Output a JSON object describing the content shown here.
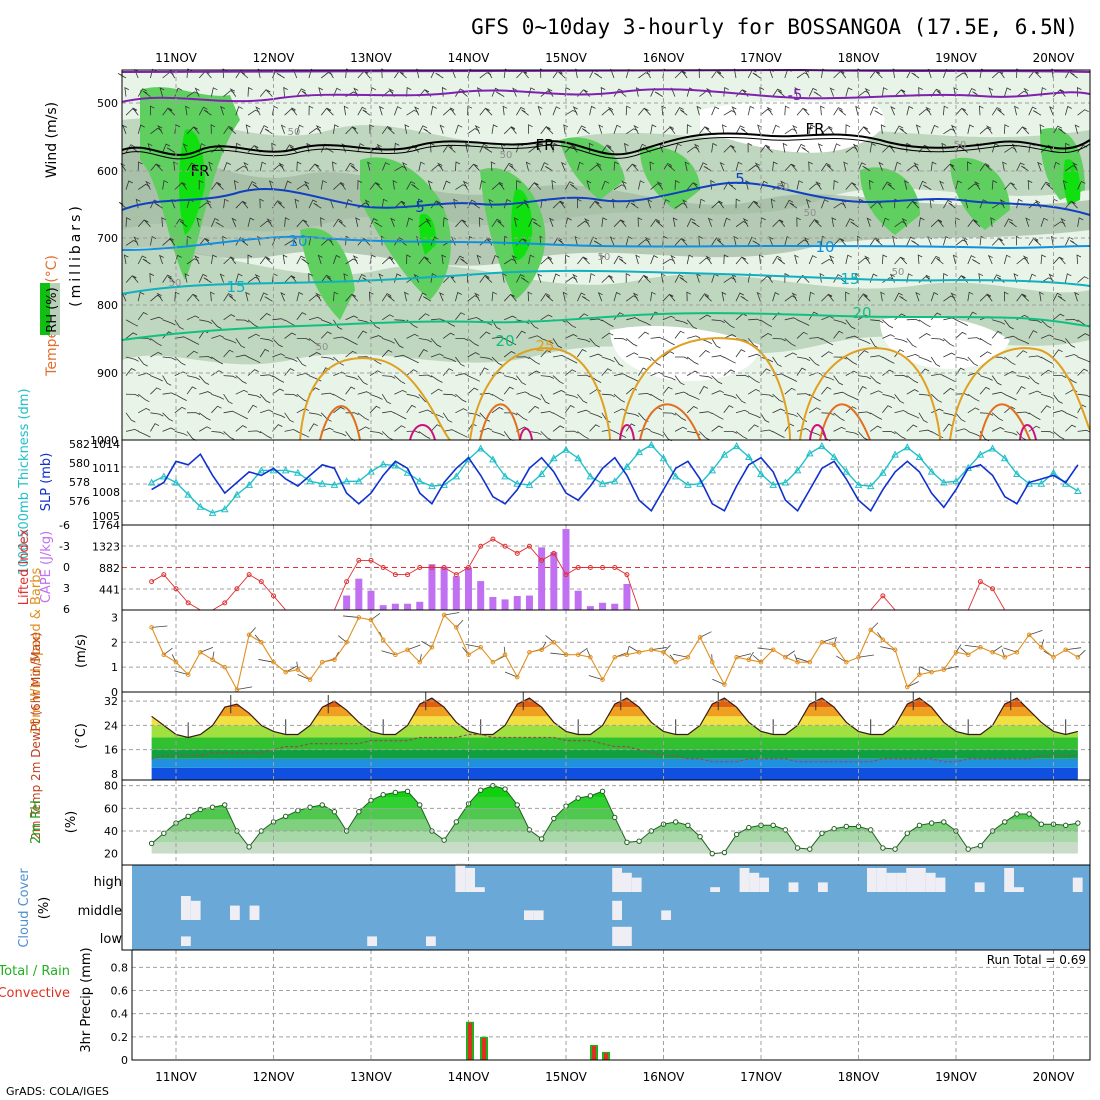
{
  "title": "GFS 0~10day 3-hourly for BOSSANGOA (17.5E, 6.5N)",
  "footer": "GrADS: COLA/IGES",
  "dates": [
    "11NOV",
    "12NOV",
    "13NOV",
    "14NOV",
    "15NOV",
    "16NOV",
    "17NOV",
    "18NOV",
    "19NOV",
    "20NOV"
  ],
  "colors": {
    "frame": "#000000",
    "grid": "#a0a0a0",
    "rh_light": "#e8f4e8",
    "rh_mid": "#bfd6bf",
    "rh_dark": "#9fb89f",
    "rh_green": "#5fcf5f",
    "rh_bright": "#10e010",
    "slp": "#1030d0",
    "thickness": "#20c0c8",
    "lifted": "#e03030",
    "cape": "#c070f0",
    "wind": "#e09020",
    "rh2m": "#20c020",
    "cloud": "#6aa8d8",
    "cloud_clear": "#eeeef4",
    "rain": "#e03020",
    "total_precip": "#20b020"
  },
  "panels": {
    "upper": {
      "ylabel_rh": "RH (%)",
      "ylabel_temp": "Temperature (°C)",
      "ylabel_wind": "Wind (m/s)",
      "ylabel_units": "(millibars)",
      "levels": [
        "500",
        "600",
        "700",
        "800",
        "900",
        "1000"
      ],
      "contour_labels": [
        {
          "text": "FR",
          "color": "#000000"
        },
        {
          "text": "FR",
          "color": "#000000"
        },
        {
          "text": "FR",
          "color": "#000000"
        },
        {
          "text": "-5",
          "color": "#8020b0"
        },
        {
          "text": "5",
          "color": "#1040c0"
        },
        {
          "text": "5",
          "color": "#1040c0"
        },
        {
          "text": "10",
          "color": "#1090e0"
        },
        {
          "text": "10",
          "color": "#1090e0"
        },
        {
          "text": "15",
          "color": "#10b0c0"
        },
        {
          "text": "15",
          "color": "#10b0c0"
        },
        {
          "text": "20",
          "color": "#10c080"
        },
        {
          "text": "20",
          "color": "#10c080"
        },
        {
          "text": "25",
          "color": "#e0a020"
        },
        {
          "text": "50",
          "color": "#909090"
        },
        {
          "text": "50",
          "color": "#909090"
        },
        {
          "text": "50",
          "color": "#909090"
        },
        {
          "text": "50",
          "color": "#909090"
        },
        {
          "text": "50",
          "color": "#909090"
        },
        {
          "text": "50",
          "color": "#909090"
        },
        {
          "text": "50",
          "color": "#909090"
        },
        {
          "text": "50",
          "color": "#909090"
        },
        {
          "text": "50",
          "color": "#909090"
        }
      ]
    },
    "slp": {
      "label_left": "1000-500mb Thickness (dm)",
      "label_right": "SLP (mb)",
      "left_ticks": [
        "582",
        "580",
        "578",
        "576"
      ],
      "right_ticks": [
        "1014",
        "1011",
        "1008",
        "1005"
      ]
    },
    "cape": {
      "label_left": "Lifted Index",
      "label_right": "CAPE (J/kg)",
      "left_ticks": [
        "-6",
        "-3",
        "0",
        "3",
        "6"
      ],
      "right_ticks": [
        "1764",
        "1323",
        "882",
        "441"
      ]
    },
    "wind": {
      "label": "10m Wind Speed & Barbs",
      "units": "(m/s)",
      "ticks": [
        "3",
        "2",
        "1",
        "0"
      ]
    },
    "temp": {
      "label": "2m Temp 2m DewPt (6hr Min/Max)",
      "units": "(°C)",
      "ticks": [
        "32",
        "24",
        "16",
        "8"
      ]
    },
    "rh": {
      "label": "2m RH",
      "units": "(%)",
      "ticks": [
        "80",
        "60",
        "40",
        "20"
      ]
    },
    "cloud": {
      "label": "Cloud Cover",
      "units": "(%)",
      "rows": [
        "high",
        "middle",
        "low"
      ]
    },
    "precip": {
      "label_total": "Total / Rain",
      "label_conv": "Convective",
      "label_axis": "3hr Precip (mm)",
      "ticks": [
        "0.8",
        "0.6",
        "0.4",
        "0.2",
        "0"
      ],
      "run_total": "Run Total = 0.69"
    }
  },
  "chart_data": [
    {
      "type": "line",
      "name": "SLP",
      "ylabel": "SLP (mb)",
      "ylim": [
        1003,
        1015
      ],
      "x": [
        "10NOV18",
        "10NOV21",
        "11NOV00",
        "11NOV03",
        "11NOV06",
        "11NOV09",
        "11NOV12",
        "11NOV15",
        "11NOV18",
        "11NOV21",
        "12NOV00",
        "12NOV03",
        "12NOV06",
        "12NOV09",
        "12NOV12",
        "12NOV15",
        "12NOV18",
        "12NOV21",
        "13NOV00",
        "13NOV03",
        "13NOV06",
        "13NOV09",
        "13NOV12",
        "13NOV15",
        "13NOV18",
        "13NOV21",
        "14NOV00",
        "14NOV03",
        "14NOV06",
        "14NOV09",
        "14NOV12",
        "14NOV15",
        "14NOV18",
        "14NOV21",
        "15NOV00",
        "15NOV03",
        "15NOV06",
        "15NOV09",
        "15NOV12",
        "15NOV15",
        "15NOV18",
        "15NOV21",
        "16NOV00",
        "16NOV03",
        "16NOV06",
        "16NOV09",
        "16NOV12",
        "16NOV15",
        "16NOV18",
        "16NOV21",
        "17NOV00",
        "17NOV03",
        "17NOV06",
        "17NOV09",
        "17NOV12",
        "17NOV15",
        "17NOV18",
        "17NOV21",
        "18NOV00",
        "18NOV03",
        "18NOV06",
        "18NOV09",
        "18NOV12",
        "18NOV15",
        "18NOV18",
        "18NOV21",
        "19NOV00",
        "19NOV03",
        "19NOV06",
        "19NOV09",
        "19NOV12",
        "19NOV15",
        "19NOV18",
        "19NOV21",
        "20NOV00",
        "20NOV03",
        "20NOV06"
      ],
      "values": [
        1008,
        1009,
        1012,
        1011.5,
        1013,
        1010,
        1007.5,
        1009,
        1010.5,
        1010,
        1011,
        1009.5,
        1008.5,
        1010,
        1011.5,
        1011,
        1007.5,
        1006,
        1007.5,
        1010,
        1012,
        1011,
        1007.5,
        1006,
        1009,
        1011,
        1012.5,
        1010,
        1007,
        1006,
        1008,
        1011,
        1012.5,
        1010.5,
        1007.5,
        1006.5,
        1008.5,
        1011,
        1012.5,
        1010,
        1006.5,
        1005,
        1008,
        1011,
        1012,
        1009.5,
        1006,
        1005,
        1008.5,
        1011.5,
        1012.5,
        1010.5,
        1006.5,
        1005,
        1008,
        1011,
        1012,
        1009.5,
        1006.5,
        1005,
        1008,
        1010.5,
        1012,
        1010.5,
        1007.5,
        1005.5,
        1008,
        1011,
        1011.5,
        1010,
        1007,
        1006,
        1009,
        1009.5,
        1010,
        1009,
        1011.5
      ]
    },
    {
      "type": "line",
      "name": "1000-500mb Thickness",
      "ylabel": "Thickness (dm)",
      "ylim": [
        575,
        582
      ],
      "values": [
        578.5,
        579,
        578.5,
        577.5,
        576.5,
        576,
        576.3,
        577.5,
        578.3,
        579.5,
        579.5,
        579.5,
        579.3,
        578.6,
        578.4,
        578.3,
        578.6,
        578.6,
        579.4,
        580,
        579.9,
        579.3,
        578.6,
        578.2,
        578.3,
        579,
        580.4,
        581.3,
        580.4,
        579,
        578.4,
        578.3,
        579.2,
        580.5,
        581.2,
        580.5,
        579,
        578.4,
        578.6,
        579.8,
        581,
        581.6,
        580.5,
        579,
        578.3,
        578.4,
        579.5,
        580.8,
        581.5,
        580.6,
        579.2,
        578.3,
        578.5,
        579.5,
        580.9,
        581.5,
        580.6,
        579.4,
        578.3,
        578.2,
        579.3,
        580.8,
        581.4,
        580.6,
        579.4,
        578.5,
        578.6,
        579.7,
        580.8,
        581.3,
        580.5,
        579.2,
        578.4,
        578.4,
        579.3,
        578.4,
        577.8
      ]
    },
    {
      "type": "bar",
      "name": "CAPE",
      "ylabel": "CAPE (J/kg)",
      "ylim": [
        0,
        1764
      ],
      "x": [
        "12NOV18",
        "12NOV21",
        "13NOV00",
        "13NOV03",
        "13NOV06",
        "13NOV09",
        "13NOV12",
        "13NOV15",
        "13NOV18",
        "13NOV21",
        "14NOV00",
        "14NOV03",
        "14NOV06",
        "14NOV09",
        "14NOV12",
        "14NOV15",
        "14NOV18",
        "14NOV21",
        "15NOV00",
        "15NOV03",
        "15NOV06",
        "15NOV09",
        "15NOV12",
        "15NOV15"
      ],
      "values": [
        300,
        650,
        400,
        100,
        130,
        130,
        170,
        950,
        900,
        700,
        880,
        600,
        270,
        220,
        290,
        300,
        1300,
        1200,
        1680,
        400,
        80,
        150,
        130,
        540
      ]
    },
    {
      "type": "line",
      "name": "Lifted Index",
      "ylabel": "Lifted Index",
      "ylim": [
        6,
        -6
      ],
      "values": [
        2,
        1,
        3,
        5,
        6,
        6,
        5,
        3,
        1,
        2,
        4,
        6,
        6,
        6,
        6,
        6,
        2,
        -1,
        -1,
        0,
        1,
        1,
        0,
        0,
        0,
        1,
        0,
        -3,
        -4,
        -3,
        -2,
        -3,
        -1,
        -2,
        1,
        0,
        0,
        0,
        0,
        1,
        6,
        6,
        6,
        6,
        6,
        6,
        6,
        6,
        6,
        6,
        6,
        6,
        6,
        6,
        6,
        6,
        6,
        6,
        6,
        6,
        4,
        6,
        6,
        6,
        6,
        6,
        6,
        6,
        2,
        3,
        6,
        6,
        6,
        6,
        6,
        6,
        6
      ]
    },
    {
      "type": "line",
      "name": "10m Wind Speed",
      "ylabel": "(m/s)",
      "ylim": [
        0,
        3.3
      ],
      "values": [
        2.6,
        1.5,
        1.2,
        0.7,
        1.6,
        1.3,
        1.0,
        0.1,
        2.3,
        2.0,
        1.2,
        0.8,
        0.9,
        0.5,
        1.2,
        1.3,
        2.0,
        3.0,
        2.9,
        2.1,
        1.5,
        1.7,
        1.2,
        1.8,
        3.1,
        2.6,
        1.5,
        1.8,
        1.2,
        1.5,
        0.6,
        1.6,
        1.7,
        2.0,
        1.5,
        1.5,
        1.4,
        0.5,
        1.4,
        1.5,
        1.6,
        1.7,
        1.6,
        1.2,
        1.4,
        2.2,
        1.2,
        0.3,
        1.4,
        1.3,
        1.2,
        1.7,
        1.4,
        1.2,
        1.2,
        2.0,
        1.9,
        1.2,
        1.4,
        2.5,
        2.1,
        1.7,
        0.2,
        0.7,
        0.8,
        0.9,
        1.6,
        1.5,
        1.8,
        1.6,
        1.4,
        1.6,
        2.3,
        1.8,
        1.4,
        1.7,
        1.4
      ]
    },
    {
      "type": "area",
      "name": "2m Temp",
      "ylabel": "(°C)",
      "ylim": [
        6,
        35
      ],
      "values": [
        27,
        24,
        21,
        20,
        21,
        24,
        30,
        31,
        28,
        24,
        22,
        21,
        21,
        24,
        30,
        32,
        29,
        25,
        22,
        21,
        21,
        24,
        31,
        33,
        30,
        25,
        22,
        21,
        21,
        24,
        31,
        33,
        30,
        25,
        22,
        21,
        21,
        24,
        31,
        33,
        30,
        25,
        22,
        21,
        21,
        24,
        31,
        33,
        30,
        25,
        22,
        21,
        21,
        24,
        31,
        33,
        30,
        25,
        22,
        21,
        21,
        24,
        31,
        33,
        30,
        25,
        22,
        21,
        21,
        24,
        31,
        33,
        29,
        25,
        22,
        21,
        22
      ]
    },
    {
      "type": "line",
      "name": "2m DewPt",
      "ylabel": "(°C)",
      "ylim": [
        6,
        35
      ],
      "values": [
        13,
        14,
        14,
        14,
        14,
        15,
        15,
        15,
        15,
        15,
        16,
        17,
        17,
        18,
        18,
        18,
        18,
        18,
        19,
        19,
        19,
        19,
        20,
        20,
        20,
        20,
        21,
        21,
        20,
        20,
        20,
        20,
        20,
        20,
        19,
        19,
        19,
        18,
        17,
        17,
        16,
        15,
        14,
        14,
        13,
        13,
        12,
        12,
        12,
        13,
        13,
        13,
        13,
        12,
        12,
        12,
        12,
        12,
        12,
        12,
        13,
        13,
        13,
        13,
        13,
        12,
        12,
        13,
        13,
        13,
        13,
        13,
        13,
        14,
        14,
        14,
        14
      ]
    },
    {
      "type": "area",
      "name": "2m RH",
      "ylabel": "(%)",
      "ylim": [
        10,
        85
      ],
      "values": [
        29,
        38,
        47,
        53,
        59,
        61,
        63,
        40,
        26,
        40,
        48,
        53,
        58,
        61,
        63,
        57,
        40,
        57,
        67,
        72,
        74,
        75,
        63,
        40,
        32,
        48,
        64,
        76,
        80,
        77,
        63,
        41,
        33,
        51,
        62,
        69,
        71,
        75,
        52,
        30,
        31,
        40,
        46,
        48,
        45,
        35,
        20,
        21,
        37,
        43,
        45,
        45,
        41,
        25,
        24,
        38,
        42,
        44,
        44,
        41,
        25,
        24,
        38,
        45,
        47,
        48,
        40,
        24,
        27,
        40,
        48,
        55,
        55,
        46,
        46,
        45,
        47
      ]
    },
    {
      "type": "bar",
      "name": "3hr Precip",
      "ylabel": "3hr Precip (mm)",
      "ylim": [
        0,
        0.95
      ],
      "series": [
        {
          "name": "Total / Rain",
          "values": [
            {
              "x": "14NOV00",
              "y": 0.33
            },
            {
              "x": "14NOV03",
              "y": 0.2
            },
            {
              "x": "15NOV06",
              "y": 0.13
            },
            {
              "x": "15NOV09",
              "y": 0.07
            }
          ]
        },
        {
          "name": "Convective",
          "values": [
            {
              "x": "14NOV00",
              "y": 0.32
            },
            {
              "x": "14NOV03",
              "y": 0.19
            },
            {
              "x": "15NOV06",
              "y": 0.12
            },
            {
              "x": "15NOV09",
              "y": 0.06
            }
          ]
        }
      ]
    }
  ]
}
